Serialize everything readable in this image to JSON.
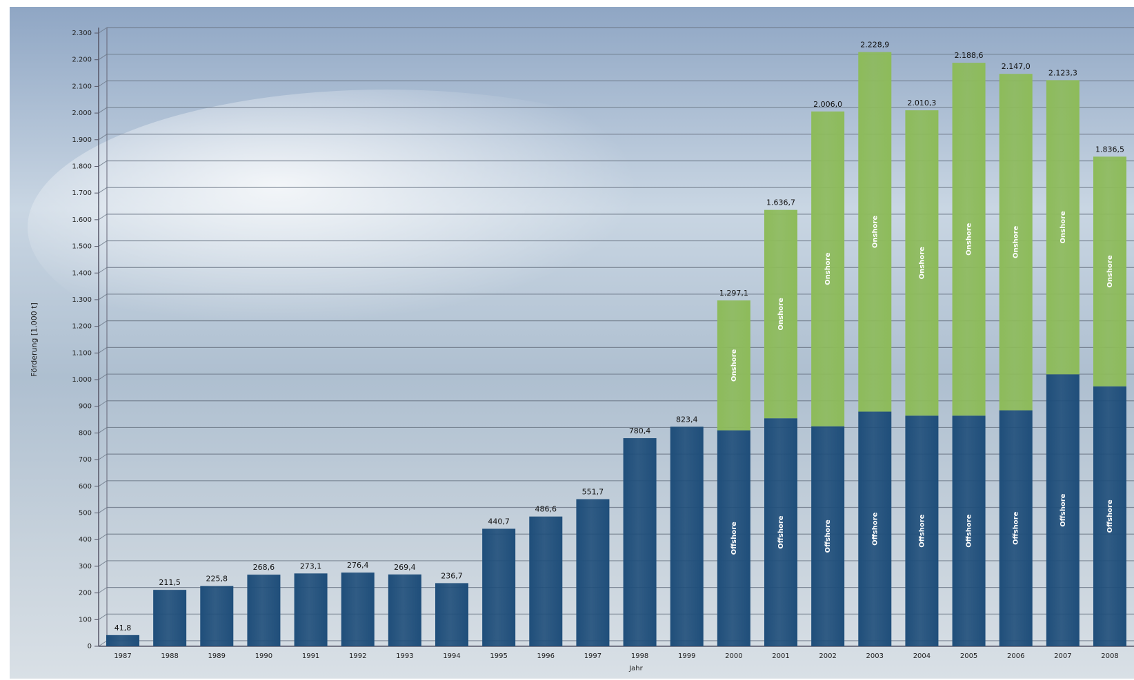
{
  "chart_data": {
    "type": "bar",
    "stacked": true,
    "y_label": "Förderung [1.000 t]",
    "x_label": "Jahr",
    "categories": [
      "1987",
      "1988",
      "1989",
      "1990",
      "1991",
      "1992",
      "1993",
      "1994",
      "1995",
      "1996",
      "1997",
      "1998",
      "1999",
      "2000",
      "2001",
      "2002",
      "2003",
      "2004",
      "2005",
      "2006",
      "2007",
      "2008"
    ],
    "series": [
      {
        "name": "Offshore",
        "color": "#1f4e7a",
        "values": [
          41.8,
          211.5,
          225.8,
          268.6,
          273.1,
          276.4,
          269.4,
          236.7,
          440.7,
          486.6,
          551.7,
          780.4,
          823.4,
          810,
          855,
          825,
          880,
          865,
          865,
          885,
          1020,
          975
        ]
      },
      {
        "name": "Onshore",
        "color": "#8dbb5a",
        "values": [
          null,
          null,
          null,
          null,
          null,
          null,
          null,
          null,
          null,
          null,
          null,
          null,
          null,
          487.1,
          781.7,
          1181.0,
          1348.9,
          1145.3,
          1323.6,
          1262.0,
          1103.3,
          861.5
        ]
      }
    ],
    "total_labels": [
      "41,8",
      "211,5",
      "225,8",
      "268,6",
      "273,1",
      "276,4",
      "269,4",
      "236,7",
      "440,7",
      "486,6",
      "551,7",
      "780,4",
      "823,4",
      "1.297,1",
      "1.636,7",
      "2.006,0",
      "2.228,9",
      "2.010,3",
      "2.188,6",
      "2.147,0",
      "2.123,3",
      "1.836,5"
    ],
    "ylim": [
      0,
      2300
    ],
    "yticks": [
      0,
      100,
      200,
      300,
      400,
      500,
      600,
      700,
      800,
      900,
      {
        "value": 1000,
        "label": "1.000"
      },
      {
        "value": 1100,
        "label": "1.100"
      },
      {
        "value": 1200,
        "label": "1.200"
      },
      {
        "value": 1300,
        "label": "1.300"
      },
      {
        "value": 1400,
        "label": "1.400"
      },
      {
        "value": 1500,
        "label": "1.500"
      },
      {
        "value": 1600,
        "label": "1.600"
      },
      {
        "value": 1700,
        "label": "1.700"
      },
      {
        "value": 1800,
        "label": "1.800"
      },
      {
        "value": 1900,
        "label": "1.900"
      },
      {
        "value": 2000,
        "label": "2.000"
      },
      {
        "value": 2100,
        "label": "2.100"
      },
      {
        "value": 2200,
        "label": "2.200"
      },
      {
        "value": 2300,
        "label": "2.300"
      }
    ],
    "grid": true
  }
}
